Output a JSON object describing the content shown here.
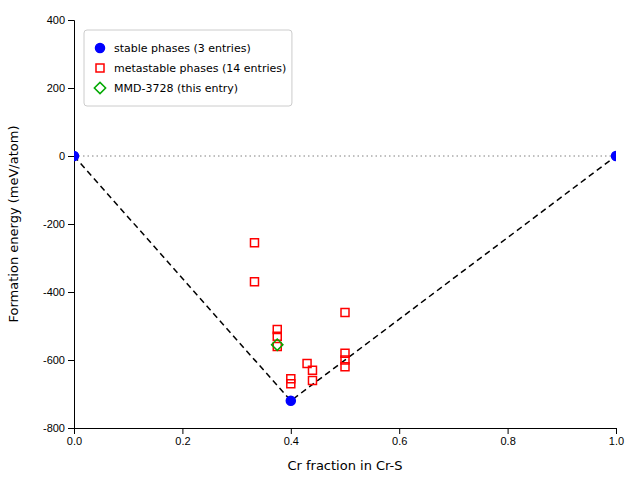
{
  "chart_data": {
    "type": "scatter",
    "xlabel": "Cr fraction in Cr-S",
    "ylabel": "Formation energy (meV/atom)",
    "xlim": [
      0.0,
      1.0
    ],
    "ylim": [
      -800,
      400
    ],
    "xticks": [
      {
        "value": 0.0,
        "label": "0.0"
      },
      0.2,
      0.4,
      0.6,
      0.8,
      {
        "value": 1.0,
        "label": "1.0"
      }
    ],
    "yticks": [
      -800,
      -600,
      -400,
      -200,
      0,
      200,
      400
    ],
    "grid": false,
    "legend": "upper left",
    "series": [
      {
        "name": "stable phases (3 entries)",
        "type": "scatter",
        "marker": "circle",
        "color": "#0000ff",
        "x": [
          0.0,
          0.4,
          1.0
        ],
        "values": [
          0.0,
          -720.0,
          0.0
        ]
      },
      {
        "name": "metastable phases (14 entries)",
        "type": "scatter",
        "marker": "square",
        "color": "#ff0000",
        "x": [
          0.333,
          0.333,
          0.375,
          0.375,
          0.375,
          0.4,
          0.4,
          0.43,
          0.44,
          0.44,
          0.5,
          0.5,
          0.5,
          0.5
        ],
        "values": [
          -255,
          -370,
          -510,
          -530,
          -560,
          -655,
          -670,
          -610,
          -630,
          -660,
          -460,
          -580,
          -600,
          -620
        ]
      },
      {
        "name": "MMD-3728 (this entry)",
        "type": "scatter",
        "marker": "diamond",
        "color": "#00aa00",
        "x": [
          0.375
        ],
        "values": [
          -555.0
        ]
      },
      {
        "type": "line",
        "line_style": "dashed",
        "color": "#000000",
        "x": [
          0.0,
          0.4,
          1.0
        ],
        "values": [
          0.0,
          -720.0,
          0.0
        ]
      },
      {
        "type": "hline",
        "line_style": "dotted",
        "color": "#808080",
        "values": [
          0
        ]
      }
    ]
  }
}
